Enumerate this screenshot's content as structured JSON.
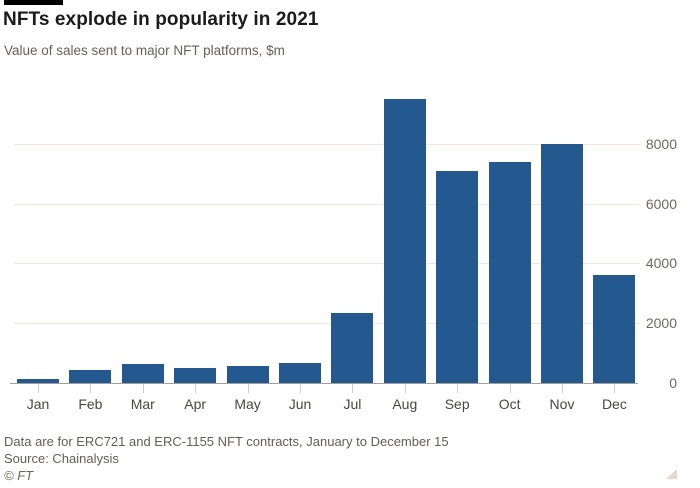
{
  "header": {
    "brand_bar_color": "#000000",
    "title": "NFTs explode in popularity in 2021",
    "subtitle": "Value of sales sent to major NFT platforms, $m"
  },
  "chart_data": {
    "type": "bar",
    "title": "NFTs explode in popularity in 2021",
    "subtitle": "Value of sales sent to major NFT platforms, $m",
    "unit": "$m",
    "categories": [
      "Jan",
      "Feb",
      "Mar",
      "Apr",
      "May",
      "Jun",
      "Jul",
      "Aug",
      "Sep",
      "Oct",
      "Nov",
      "Dec"
    ],
    "values": [
      120,
      430,
      640,
      500,
      570,
      670,
      2340,
      9500,
      7100,
      7380,
      8000,
      3620
    ],
    "xlabel": "",
    "ylabel": "",
    "ylim": [
      0,
      9800
    ],
    "yticks": [
      0,
      2000,
      4000,
      6000,
      8000
    ],
    "yaxis_side": "right",
    "grid": true,
    "legend": false,
    "bar_color": "#23598f",
    "gridline_color": "#f4e4dd",
    "axis_line_color": "#a39e99"
  },
  "footer": {
    "note": "Data are for ERC721 and ERC-1155 NFT contracts, January to December 15",
    "source": "Source: Chainalysis",
    "copyright": "© FT"
  }
}
